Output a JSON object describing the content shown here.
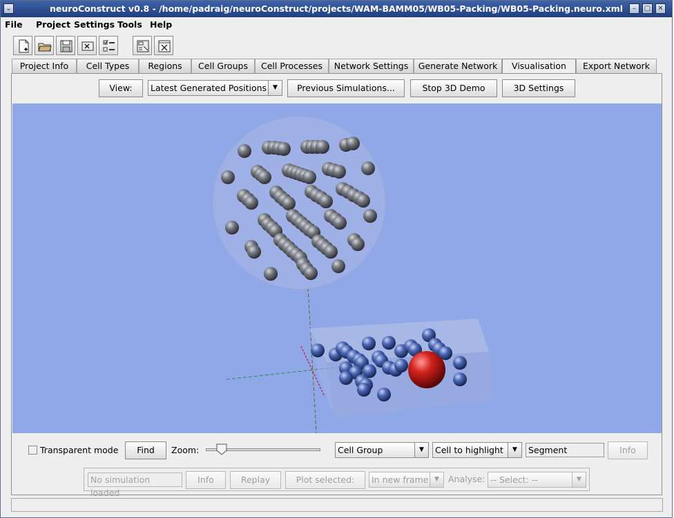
{
  "window": {
    "title": "neuroConstruct v0.8 - /home/padraig/neuroConstruct/projects/WAM-BAMM05/WB05-Packing/WB05-Packing.neuro.xml",
    "controls": {
      "minimize": "–",
      "maximize": "□",
      "close": "✕",
      "system_menu": "⌄"
    }
  },
  "menu": {
    "file": "File",
    "project": "Project",
    "settings": "Settings",
    "tools": "Tools",
    "help": "Help"
  },
  "toolbar": {
    "icons": [
      "new-project-icon",
      "open-project-icon",
      "save-project-icon",
      "close-project-icon",
      "validate-project-icon",
      "preferences-icon",
      "exit-icon"
    ]
  },
  "tabs": {
    "project_info": "Project Info",
    "cell_types": "Cell Types",
    "regions": "Regions",
    "cell_groups": "Cell Groups",
    "cell_processes": "Cell Processes",
    "network_settings": "Network Settings",
    "generate_network": "Generate Network",
    "visualisation": "Visualisation",
    "export_network": "Export Network",
    "active": "Visualisation"
  },
  "view_bar": {
    "view_button": "View:",
    "view_selected": "Latest Generated Positions",
    "previous_sims": "Previous Simulations...",
    "stop_demo": "Stop 3D Demo",
    "settings_3d": "3D Settings"
  },
  "controls": {
    "transparent_mode": "Transparent mode",
    "transparent_checked": false,
    "find": "Find",
    "zoom_label": "Zoom:",
    "zoom_value": 0.1,
    "cell_group": "Cell Group",
    "cell_to_highlight": "Cell to highlight",
    "segment": "Segment",
    "info": "Info"
  },
  "sim_panel": {
    "status": "No simulation loaded",
    "info": "Info",
    "replay": "Replay",
    "plot_selected": "Plot selected:",
    "in_new_frame": "In new frame",
    "analyse_label": "Analyse:",
    "analyse_select": "-- Select: --"
  },
  "colors": {
    "viewport_bg": "#90a7e8",
    "grey_cell": "#7f8188",
    "blue_cell": "#4b66b3",
    "highlighted_cell": "#cc1a1a"
  },
  "status_bar": {
    "text": ""
  }
}
